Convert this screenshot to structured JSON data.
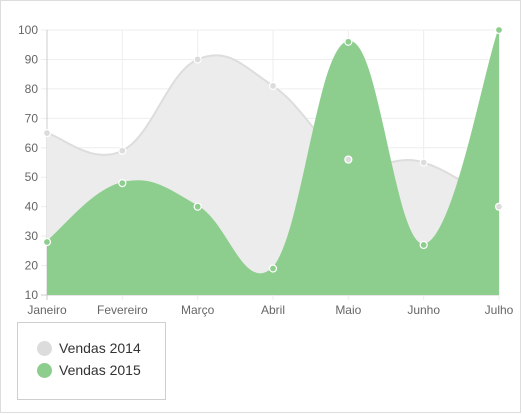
{
  "chart_data": {
    "type": "area",
    "categories": [
      "Janeiro",
      "Fevereiro",
      "Março",
      "Abril",
      "Maio",
      "Junho",
      "Julho"
    ],
    "series": [
      {
        "name": "Vendas 2014",
        "values": [
          65,
          59,
          90,
          81,
          56,
          55,
          40
        ],
        "color": "#dcdcdc",
        "fill": "#ececec",
        "stroke": "#dddddd"
      },
      {
        "name": "Vendas 2015",
        "values": [
          28,
          48,
          40,
          19,
          96,
          27,
          100
        ],
        "color": "#8dce8e",
        "fill": "#8dce8e",
        "stroke": "#8dce8e"
      }
    ],
    "ylim": [
      10,
      100
    ],
    "yticks": [
      "10",
      "20",
      "30",
      "40",
      "50",
      "60",
      "70",
      "80",
      "90",
      "100"
    ],
    "grid": true,
    "legend_position": "bottom-left",
    "title": "",
    "xlabel": "",
    "ylabel": ""
  },
  "legend": {
    "items": [
      {
        "label": "Vendas 2014",
        "color": "#dcdcdc"
      },
      {
        "label": "Vendas 2015",
        "color": "#8dce8e"
      }
    ]
  }
}
